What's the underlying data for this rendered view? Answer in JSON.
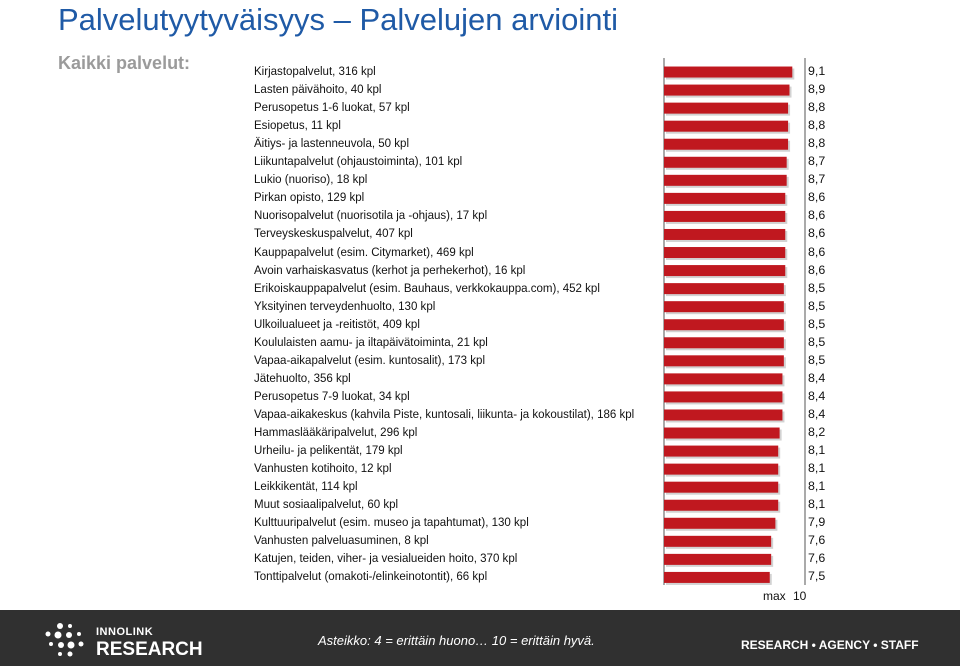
{
  "title": "Palvelutyytyväisyys – Palvelujen arviointi",
  "subtitle": "Kaikki palvelut:",
  "chart_data": {
    "type": "bar",
    "orientation": "horizontal",
    "xlim": [
      0,
      10
    ],
    "bar_color": "#c0181f",
    "categories": [
      "Kirjastopalvelut, 316 kpl",
      "Lasten päivähoito, 40 kpl",
      "Perusopetus 1-6 luokat, 57 kpl",
      "Esiopetus, 11 kpl",
      "Äitiys- ja lastenneuvola, 50 kpl",
      "Liikuntapalvelut (ohjaustoiminta), 101 kpl",
      "Lukio (nuoriso), 18 kpl",
      "Pirkan opisto, 129 kpl",
      "Nuorisopalvelut (nuorisotila ja -ohjaus), 17 kpl",
      "Terveyskeskuspalvelut, 407 kpl",
      "Kauppapalvelut (esim. Citymarket), 469 kpl",
      "Avoin varhaiskasvatus (kerhot ja perhekerhot), 16 kpl",
      "Erikoiskauppapalvelut (esim. Bauhaus, verkkokauppa.com), 452 kpl",
      "Yksityinen terveydenhuolto, 130 kpl",
      "Ulkoilualueet ja -reitistöt, 409 kpl",
      "Koululaisten aamu- ja iltapäivätoiminta, 21 kpl",
      "Vapaa-aikapalvelut (esim. kuntosalit), 173 kpl",
      "Jätehuolto, 356 kpl",
      "Perusopetus 7-9 luokat, 34 kpl",
      "Vapaa-aikakeskus (kahvila Piste, kuntosali, liikunta- ja kokoustilat), 186 kpl",
      "Hammaslääkäripalvelut, 296 kpl",
      "Urheilu- ja pelikentät, 179 kpl",
      "Vanhusten kotihoito, 12 kpl",
      "Leikkikentät, 114 kpl",
      "Muut sosiaalipalvelut, 60 kpl",
      "Kulttuuripalvelut (esim. museo ja tapahtumat), 130 kpl",
      "Vanhusten palveluasuminen, 8 kpl",
      "Katujen, teiden, viher- ja vesialueiden hoito, 370 kpl",
      "Tonttipalvelut (omakoti-/elinkeinotontit), 66 kpl"
    ],
    "value_labels": [
      "9,1",
      "8,9",
      "8,8",
      "8,8",
      "8,8",
      "8,7",
      "8,7",
      "8,6",
      "8,6",
      "8,6",
      "8,6",
      "8,6",
      "8,5",
      "8,5",
      "8,5",
      "8,5",
      "8,5",
      "8,4",
      "8,4",
      "8,4",
      "8,2",
      "8,1",
      "8,1",
      "8,1",
      "8,1",
      "7,9",
      "7,6",
      "7,6",
      "7,5"
    ],
    "values": [
      9.1,
      8.9,
      8.8,
      8.8,
      8.8,
      8.7,
      8.7,
      8.6,
      8.6,
      8.6,
      8.6,
      8.6,
      8.5,
      8.5,
      8.5,
      8.5,
      8.5,
      8.4,
      8.4,
      8.4,
      8.2,
      8.1,
      8.1,
      8.1,
      8.1,
      7.9,
      7.6,
      7.6,
      7.5
    ],
    "max_label": "max",
    "max_value": "10"
  },
  "footer": {
    "logo_line1": "INNOLINK",
    "logo_line2": "RESEARCH",
    "scale_text": "Asteikko:  4 = erittäin huono… 10 = erittäin hyvä.",
    "tagline": "RESEARCH • AGENCY • STAFF"
  }
}
